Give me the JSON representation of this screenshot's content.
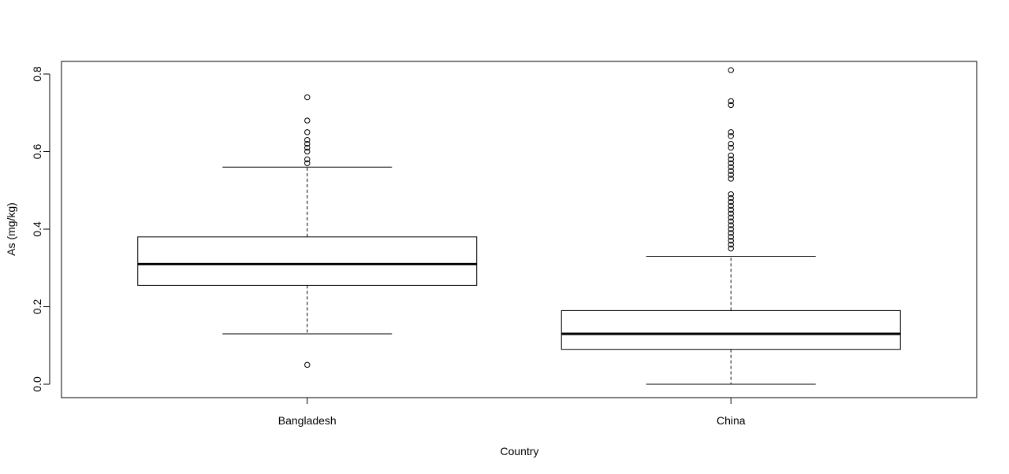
{
  "chart_data": {
    "type": "box",
    "xlabel": "Country",
    "ylabel": "As (mg/kg)",
    "ylim": [
      -0.03,
      0.83
    ],
    "yticks": [
      0.0,
      0.2,
      0.4,
      0.6,
      0.8
    ],
    "ytick_labels": [
      "0.0",
      "0.2",
      "0.4",
      "0.6",
      "0.8"
    ],
    "categories": [
      "Bangladesh",
      "China"
    ],
    "grid": false,
    "boxes": [
      {
        "name": "Bangladesh",
        "whisker_low": 0.13,
        "q1": 0.255,
        "median": 0.31,
        "q3": 0.38,
        "whisker_high": 0.56,
        "outliers": [
          0.05,
          0.57,
          0.58,
          0.6,
          0.61,
          0.62,
          0.63,
          0.65,
          0.68,
          0.74
        ]
      },
      {
        "name": "China",
        "whisker_low": 0.0,
        "q1": 0.09,
        "median": 0.13,
        "q3": 0.19,
        "whisker_high": 0.33,
        "outliers": [
          0.35,
          0.36,
          0.37,
          0.38,
          0.39,
          0.4,
          0.41,
          0.42,
          0.43,
          0.44,
          0.45,
          0.46,
          0.47,
          0.48,
          0.49,
          0.53,
          0.54,
          0.55,
          0.56,
          0.57,
          0.58,
          0.59,
          0.61,
          0.62,
          0.64,
          0.65,
          0.72,
          0.73,
          0.81
        ]
      }
    ]
  }
}
